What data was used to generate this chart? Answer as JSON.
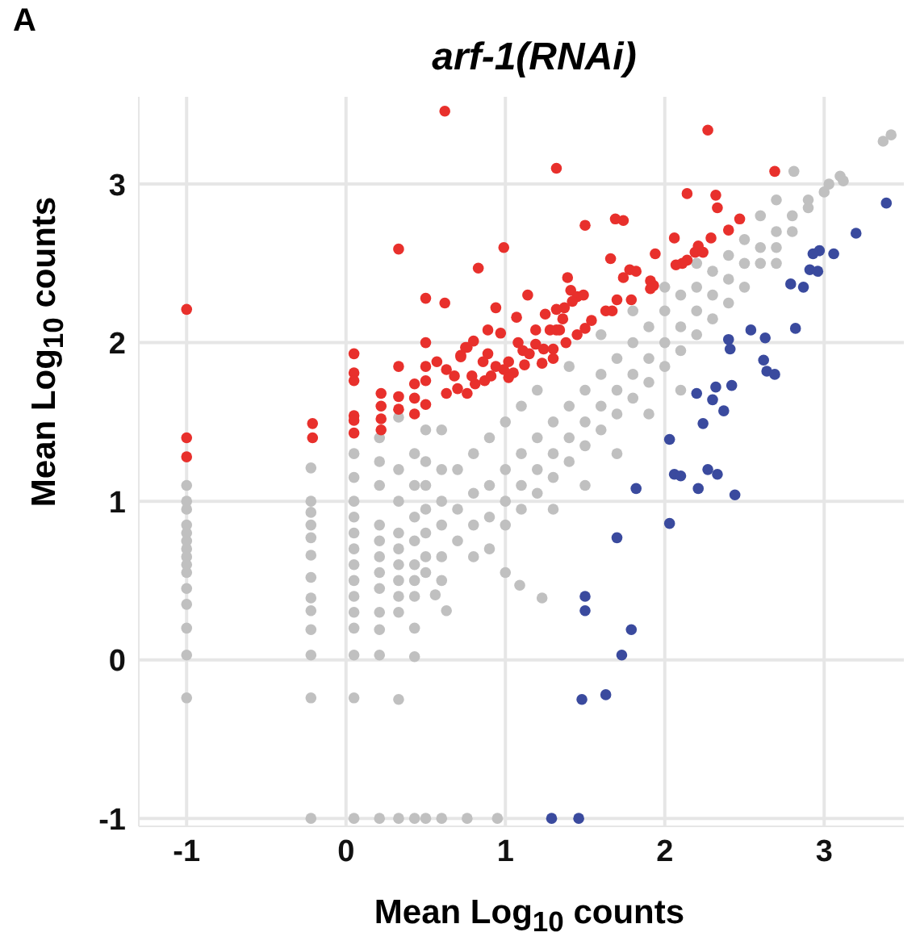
{
  "chart_data": {
    "type": "scatter",
    "title": "arf-1(RNAi)",
    "xlabel": "Mean Log$_{10}$ counts",
    "ylabel": "Mean Log$_{10}$ counts",
    "annotations": [
      "A"
    ],
    "xlim": [
      -1.3,
      3.5
    ],
    "ylim": [
      -1.05,
      3.55
    ],
    "xticks": [
      -1,
      0,
      1,
      2,
      3
    ],
    "yticks": [
      -1,
      0,
      1,
      2,
      3
    ],
    "grid": true,
    "marker": "circle",
    "series": [
      {
        "color": "#c0c0c0",
        "x": [
          -1,
          -1,
          -1,
          -1,
          -1,
          -1,
          -1,
          -1,
          -1,
          -1,
          -1,
          -1,
          -1,
          -1,
          -1,
          -0.22,
          -0.22,
          -0.22,
          -0.22,
          -0.22,
          -0.22,
          -0.22,
          -0.22,
          -0.22,
          -0.22,
          -0.22,
          -0.22,
          -0.22,
          0.05,
          0.05,
          0.05,
          0.05,
          0.05,
          0.05,
          0.05,
          0.05,
          0.05,
          0.05,
          0.05,
          0.05,
          0.05,
          0.05,
          0.21,
          0.21,
          0.21,
          0.21,
          0.21,
          0.21,
          0.21,
          0.21,
          0.21,
          0.21,
          0.21,
          0.21,
          0.33,
          0.33,
          0.33,
          0.33,
          0.33,
          0.33,
          0.33,
          0.33,
          0.33,
          0.33,
          0.33,
          0.43,
          0.43,
          0.43,
          0.43,
          0.43,
          0.43,
          0.43,
          0.43,
          0.43,
          0.43,
          0.5,
          0.5,
          0.5,
          0.5,
          0.5,
          0.5,
          0.5,
          0.5,
          0.6,
          0.6,
          0.6,
          0.6,
          0.6,
          0.6,
          0.6,
          0.63,
          0.56,
          0.76,
          0.95,
          0.7,
          0.7,
          0.7,
          0.8,
          0.8,
          0.8,
          0.8,
          0.9,
          0.9,
          0.9,
          0.9,
          1.0,
          1.0,
          1.0,
          1.0,
          1.0,
          1.1,
          1.1,
          1.1,
          1.09,
          1.1,
          1.2,
          1.2,
          1.2,
          1.2,
          1.23,
          1.3,
          1.3,
          1.3,
          1.3,
          1.4,
          1.4,
          1.4,
          1.4,
          1.5,
          1.5,
          1.5,
          1.5,
          1.6,
          1.6,
          1.6,
          1.6,
          1.7,
          1.7,
          1.7,
          1.7,
          1.8,
          1.8,
          1.8,
          1.8,
          1.9,
          1.9,
          1.9,
          1.9,
          2.0,
          2.0,
          2.0,
          2.0,
          2.1,
          2.1,
          2.1,
          2.1,
          2.2,
          2.2,
          2.2,
          2.2,
          2.3,
          2.3,
          2.3,
          2.4,
          2.4,
          2.4,
          2.5,
          2.5,
          2.5,
          2.6,
          2.6,
          2.6,
          2.7,
          2.7,
          2.7,
          2.7,
          2.8,
          2.8,
          2.81,
          2.9,
          2.9,
          3.0,
          3.03,
          3.12,
          3.1,
          3.37,
          3.42
        ],
        "values": [
          1.1,
          1.0,
          0.95,
          0.85,
          0.8,
          0.75,
          0.7,
          0.65,
          0.6,
          0.55,
          0.45,
          0.35,
          0.2,
          0.03,
          -0.24,
          1.21,
          1.0,
          0.93,
          0.85,
          0.77,
          0.66,
          0.52,
          0.39,
          0.31,
          0.19,
          0.03,
          -0.24,
          -1.0,
          1.3,
          1.15,
          1.0,
          0.9,
          0.8,
          0.7,
          0.6,
          0.5,
          0.4,
          0.3,
          0.2,
          0.03,
          -0.24,
          -1.0,
          1.4,
          1.25,
          1.1,
          0.85,
          0.75,
          0.65,
          0.55,
          0.45,
          0.3,
          0.19,
          0.03,
          -1.0,
          1.53,
          1.2,
          1.0,
          0.8,
          0.7,
          0.6,
          0.5,
          0.4,
          0.3,
          -0.25,
          -1.0,
          1.3,
          1.1,
          0.9,
          0.75,
          0.6,
          0.5,
          0.4,
          0.2,
          0.02,
          -1.0,
          1.45,
          1.25,
          1.1,
          0.95,
          0.8,
          0.65,
          0.55,
          -1.0,
          1.45,
          1.2,
          1.0,
          0.85,
          0.65,
          0.5,
          -1.0,
          0.31,
          0.41,
          -1.0,
          -1.0,
          0.95,
          0.75,
          1.2,
          0.85,
          1.05,
          0.65,
          1.3,
          0.9,
          1.1,
          0.7,
          1.4,
          1.0,
          0.85,
          1.2,
          1.5,
          0.55,
          1.1,
          0.95,
          1.3,
          0.47,
          1.6,
          1.2,
          1.05,
          1.4,
          1.7,
          0.39,
          1.3,
          1.15,
          1.5,
          0.95,
          1.4,
          1.25,
          1.6,
          1.85,
          1.5,
          1.35,
          1.7,
          1.1,
          1.6,
          1.45,
          1.8,
          2.05,
          1.7,
          1.55,
          1.9,
          1.3,
          1.8,
          1.65,
          2.0,
          2.2,
          1.9,
          1.75,
          2.1,
          1.55,
          2.0,
          1.85,
          2.2,
          2.35,
          2.1,
          1.95,
          2.3,
          1.7,
          2.2,
          2.05,
          2.35,
          2.5,
          2.3,
          2.15,
          2.45,
          2.4,
          2.25,
          2.55,
          2.5,
          2.35,
          2.65,
          2.6,
          2.5,
          2.8,
          2.7,
          2.6,
          2.9,
          2.5,
          2.8,
          2.7,
          3.08,
          2.9,
          2.85,
          2.95,
          3.0,
          3.02,
          3.05,
          3.27,
          3.31
        ]
      },
      {
        "color": "#e8302c",
        "x": [
          -1,
          -1,
          -1,
          -0.21,
          -0.21,
          0.62,
          0.33,
          0.5,
          0.62,
          0.5,
          0.05,
          0.05,
          0.05,
          0.05,
          0.05,
          0.05,
          0.22,
          0.22,
          0.22,
          0.22,
          0.33,
          0.33,
          0.33,
          0.43,
          0.43,
          0.43,
          0.5,
          0.5,
          0.5,
          0.57,
          0.63,
          0.63,
          0.68,
          0.72,
          0.75,
          2.27,
          1.32,
          2.69,
          2.14,
          2.32,
          2.33,
          1.69,
          1.74,
          1.5,
          2.47,
          2.4,
          0.99,
          2.06,
          2.29,
          2.21,
          2.19,
          1.94,
          0.83,
          1.66,
          2.14,
          2.11,
          2.07,
          2.24,
          1.39,
          1.78,
          1.82,
          1.74,
          1.91,
          1.93,
          1.91,
          1.14,
          0.94,
          1.41,
          1.45,
          1.49,
          1.42,
          1.37,
          1.7,
          1.79,
          1.63,
          1.67,
          1.07,
          1.25,
          1.32,
          1.36,
          1.34,
          1.54,
          1.5,
          0.89,
          0.97,
          1.19,
          1.28,
          1.32,
          0.8,
          0.76,
          0.72,
          1.08,
          1.11,
          1.19,
          1.24,
          1.38,
          1.3,
          1.45,
          0.89,
          0.86,
          0.94,
          1.02,
          1.05,
          1.12,
          1.15,
          1.23,
          1.3,
          0.7,
          0.76,
          0.81,
          0.87,
          0.91,
          0.79,
          0.99,
          1.02
        ],
        "values": [
          2.21,
          1.4,
          1.28,
          1.49,
          1.4,
          3.46,
          2.59,
          2.28,
          2.25,
          2.0,
          1.93,
          1.81,
          1.76,
          1.54,
          1.51,
          1.43,
          1.68,
          1.6,
          1.52,
          1.45,
          1.85,
          1.66,
          1.58,
          1.74,
          1.65,
          1.55,
          1.85,
          1.76,
          1.61,
          1.88,
          1.83,
          1.68,
          1.79,
          1.91,
          1.97,
          3.34,
          3.1,
          3.08,
          2.94,
          2.93,
          2.85,
          2.78,
          2.77,
          2.74,
          2.78,
          2.71,
          2.6,
          2.66,
          2.66,
          2.61,
          2.57,
          2.56,
          2.47,
          2.53,
          2.52,
          2.5,
          2.49,
          2.57,
          2.41,
          2.46,
          2.45,
          2.41,
          2.39,
          2.36,
          2.34,
          2.3,
          2.22,
          2.33,
          2.29,
          2.3,
          2.26,
          2.22,
          2.27,
          2.27,
          2.2,
          2.2,
          2.16,
          2.18,
          2.21,
          2.15,
          2.08,
          2.14,
          2.09,
          2.08,
          2.06,
          2.08,
          2.08,
          2.08,
          2.01,
          1.97,
          1.92,
          2.0,
          1.95,
          1.99,
          1.96,
          2.0,
          1.96,
          2.05,
          1.93,
          1.88,
          1.85,
          1.88,
          1.81,
          1.86,
          1.93,
          1.87,
          1.9,
          1.71,
          1.68,
          1.74,
          1.76,
          1.79,
          1.79,
          1.83,
          1.78
        ]
      },
      {
        "color": "#3a4a9e",
        "x": [
          3.39,
          3.2,
          3.06,
          2.97,
          2.93,
          2.91,
          2.96,
          2.79,
          2.87,
          2.82,
          2.54,
          2.63,
          2.4,
          2.41,
          2.62,
          2.64,
          2.69,
          2.42,
          2.32,
          2.2,
          2.3,
          2.37,
          2.24,
          2.03,
          2.06,
          2.1,
          2.27,
          2.33,
          2.21,
          2.44,
          1.82,
          2.03,
          1.7,
          1.5,
          1.5,
          1.79,
          1.73,
          1.48,
          1.63,
          1.29,
          1.46
        ],
        "values": [
          2.88,
          2.69,
          2.56,
          2.58,
          2.56,
          2.46,
          2.45,
          2.37,
          2.35,
          2.09,
          2.08,
          2.03,
          2.02,
          1.96,
          1.89,
          1.82,
          1.8,
          1.73,
          1.72,
          1.68,
          1.64,
          1.57,
          1.49,
          1.39,
          1.17,
          1.16,
          1.2,
          1.17,
          1.08,
          1.04,
          1.08,
          0.86,
          0.77,
          0.4,
          0.31,
          0.19,
          0.03,
          -0.25,
          -0.22,
          -1.0,
          -1.0
        ]
      }
    ]
  }
}
